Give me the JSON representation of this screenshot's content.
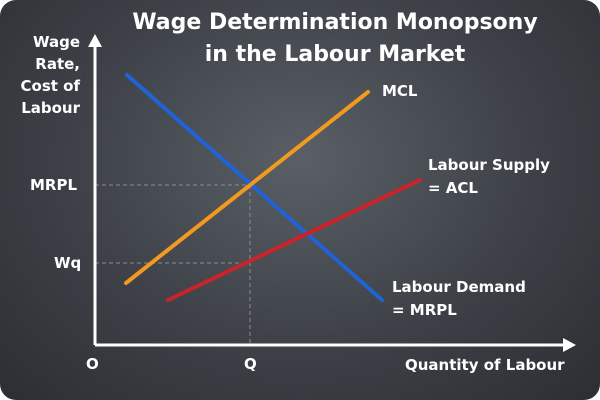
{
  "title_line1": "Wage Determination Monopsony",
  "title_line2": "in the Labour Market",
  "y_axis_label": [
    "Wage",
    "Rate,",
    "Cost of",
    "Labour"
  ],
  "x_axis_label": "Quantity of Labour",
  "origin_label": "O",
  "x_tick_label": "Q",
  "y_tick_labels": [
    "MRPL",
    "Wq"
  ],
  "curves": {
    "mcl": {
      "label": "MCL",
      "color": "#f29a1f"
    },
    "supply": {
      "label_line1": "Labour Supply",
      "label_line2": "= ACL",
      "color": "#cc2229"
    },
    "demand": {
      "label_line1": "Labour Demand",
      "label_line2": "= MRPL",
      "color": "#1f63d6"
    }
  },
  "colors": {
    "axis": "#ffffff",
    "guide": "#8a8d92",
    "background": "#3d4147"
  }
}
